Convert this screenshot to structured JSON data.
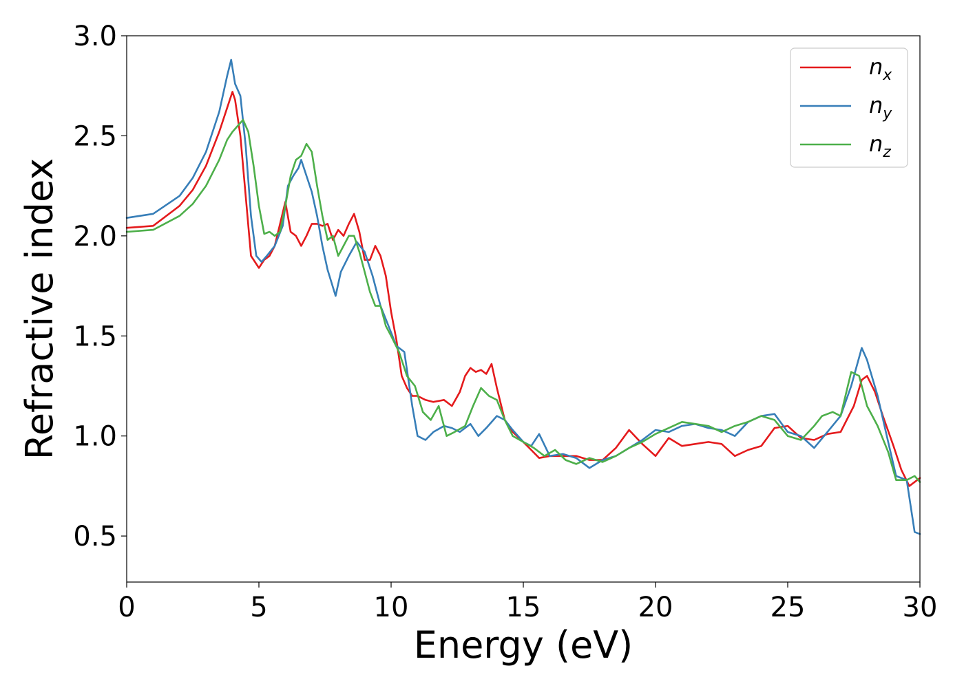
{
  "chart_data": {
    "type": "line",
    "xlabel": "Energy (eV)",
    "ylabel": "Refractive index",
    "xlim": [
      0,
      30
    ],
    "ylim": [
      0.27,
      3.0
    ],
    "xticks": [
      0,
      5,
      10,
      15,
      20,
      25,
      30
    ],
    "yticks": [
      0.5,
      1.0,
      1.5,
      2.0,
      2.5,
      3.0
    ],
    "xtick_labels": [
      "0",
      "5",
      "10",
      "15",
      "20",
      "25",
      "30"
    ],
    "ytick_labels": [
      "0.5",
      "1.0",
      "1.5",
      "2.0",
      "2.5",
      "3.0"
    ],
    "grid": false,
    "legend_position": "top-right",
    "series": [
      {
        "name": "n",
        "subscript": "x",
        "color": "#e41a1c",
        "x": [
          0,
          1,
          2,
          2.5,
          3,
          3.5,
          3.8,
          4.0,
          4.1,
          4.3,
          4.5,
          4.7,
          4.9,
          5.0,
          5.2,
          5.4,
          5.6,
          5.8,
          6.0,
          6.2,
          6.4,
          6.6,
          6.8,
          7.0,
          7.2,
          7.4,
          7.6,
          7.8,
          8.0,
          8.2,
          8.4,
          8.6,
          8.8,
          9.0,
          9.2,
          9.4,
          9.6,
          9.8,
          10.0,
          10.2,
          10.4,
          10.6,
          10.8,
          11.0,
          11.3,
          11.6,
          12.0,
          12.3,
          12.6,
          12.8,
          13.0,
          13.2,
          13.4,
          13.6,
          13.8,
          14.0,
          14.3,
          14.6,
          15.0,
          15.3,
          15.6,
          16.0,
          16.5,
          17.0,
          17.5,
          18.0,
          18.5,
          19.0,
          19.5,
          20.0,
          20.5,
          21.0,
          21.5,
          22.0,
          22.5,
          23.0,
          23.5,
          24.0,
          24.5,
          25.0,
          25.5,
          26.0,
          26.5,
          27.0,
          27.5,
          27.8,
          28.0,
          28.3,
          28.6,
          29.0,
          29.3,
          29.6,
          30.0
        ],
        "values": [
          2.04,
          2.05,
          2.15,
          2.23,
          2.35,
          2.52,
          2.64,
          2.72,
          2.68,
          2.5,
          2.2,
          1.9,
          1.86,
          1.84,
          1.88,
          1.9,
          1.95,
          2.06,
          2.17,
          2.02,
          2.0,
          1.95,
          2.0,
          2.06,
          2.06,
          2.05,
          2.06,
          1.98,
          2.03,
          2.0,
          2.06,
          2.11,
          2.02,
          1.88,
          1.88,
          1.95,
          1.9,
          1.8,
          1.62,
          1.48,
          1.3,
          1.24,
          1.2,
          1.2,
          1.18,
          1.17,
          1.18,
          1.15,
          1.22,
          1.3,
          1.34,
          1.32,
          1.33,
          1.31,
          1.36,
          1.24,
          1.08,
          1.02,
          0.97,
          0.93,
          0.89,
          0.9,
          0.9,
          0.9,
          0.88,
          0.88,
          0.94,
          1.03,
          0.96,
          0.9,
          0.99,
          0.95,
          0.96,
          0.97,
          0.96,
          0.9,
          0.93,
          0.95,
          1.04,
          1.05,
          0.99,
          0.98,
          1.01,
          1.02,
          1.15,
          1.28,
          1.3,
          1.22,
          1.1,
          0.95,
          0.83,
          0.75,
          0.79
        ]
      },
      {
        "name": "n",
        "subscript": "y",
        "color": "#377eb8",
        "x": [
          0,
          1,
          2,
          2.5,
          3,
          3.5,
          3.8,
          3.95,
          4.1,
          4.3,
          4.5,
          4.7,
          4.9,
          5.1,
          5.3,
          5.6,
          5.9,
          6.1,
          6.3,
          6.5,
          6.6,
          6.8,
          7.0,
          7.2,
          7.4,
          7.6,
          7.9,
          8.1,
          8.4,
          8.7,
          9.0,
          9.3,
          9.6,
          9.9,
          10.2,
          10.5,
          10.8,
          11.0,
          11.3,
          11.6,
          12.0,
          12.3,
          12.6,
          13.0,
          13.3,
          13.6,
          14.0,
          14.3,
          14.6,
          15.0,
          15.3,
          15.6,
          16.0,
          16.5,
          17.0,
          17.5,
          18.0,
          18.5,
          19.0,
          19.5,
          20.0,
          20.5,
          21.0,
          21.5,
          22.0,
          22.5,
          23.0,
          23.5,
          24.0,
          24.5,
          25.0,
          25.5,
          26.0,
          26.5,
          27.0,
          27.4,
          27.8,
          28.0,
          28.4,
          28.8,
          29.1,
          29.5,
          29.8,
          30.0
        ],
        "values": [
          2.09,
          2.11,
          2.2,
          2.29,
          2.42,
          2.62,
          2.8,
          2.88,
          2.76,
          2.7,
          2.45,
          2.1,
          1.9,
          1.87,
          1.9,
          1.95,
          2.05,
          2.25,
          2.3,
          2.34,
          2.38,
          2.3,
          2.22,
          2.1,
          1.95,
          1.83,
          1.7,
          1.82,
          1.9,
          1.97,
          1.92,
          1.8,
          1.65,
          1.55,
          1.45,
          1.42,
          1.15,
          1.0,
          0.98,
          1.02,
          1.05,
          1.04,
          1.02,
          1.06,
          1.0,
          1.04,
          1.1,
          1.08,
          1.03,
          0.97,
          0.95,
          1.01,
          0.9,
          0.91,
          0.89,
          0.84,
          0.88,
          0.9,
          0.94,
          0.98,
          1.03,
          1.02,
          1.05,
          1.06,
          1.04,
          1.03,
          1.0,
          1.07,
          1.1,
          1.11,
          1.02,
          1.0,
          0.94,
          1.02,
          1.1,
          1.25,
          1.44,
          1.38,
          1.2,
          0.97,
          0.8,
          0.78,
          0.52,
          0.51
        ]
      },
      {
        "name": "n",
        "subscript": "z",
        "color": "#4daf4a",
        "x": [
          0,
          1,
          2,
          2.5,
          3,
          3.5,
          3.8,
          4.0,
          4.2,
          4.4,
          4.6,
          4.8,
          5.0,
          5.2,
          5.4,
          5.6,
          5.8,
          6.0,
          6.2,
          6.4,
          6.6,
          6.8,
          7.0,
          7.2,
          7.4,
          7.6,
          7.8,
          8.0,
          8.2,
          8.4,
          8.6,
          8.8,
          9.0,
          9.2,
          9.4,
          9.6,
          9.8,
          10.0,
          10.3,
          10.6,
          10.9,
          11.2,
          11.5,
          11.8,
          12.1,
          12.4,
          12.8,
          13.1,
          13.4,
          13.7,
          14.0,
          14.3,
          14.6,
          15.0,
          15.4,
          15.8,
          16.2,
          16.6,
          17.0,
          17.5,
          18.0,
          18.5,
          19.0,
          19.5,
          20.0,
          20.5,
          21.0,
          21.5,
          22.0,
          22.5,
          23.0,
          23.5,
          24.0,
          24.5,
          25.0,
          25.5,
          26.0,
          26.3,
          26.7,
          27.0,
          27.4,
          27.7,
          28.0,
          28.4,
          28.8,
          29.1,
          29.5,
          29.8,
          30.0
        ],
        "values": [
          2.02,
          2.03,
          2.1,
          2.16,
          2.25,
          2.38,
          2.48,
          2.52,
          2.55,
          2.58,
          2.52,
          2.35,
          2.15,
          2.01,
          2.02,
          2.0,
          2.02,
          2.15,
          2.3,
          2.38,
          2.4,
          2.46,
          2.42,
          2.25,
          2.1,
          1.98,
          2.0,
          1.9,
          1.95,
          2.0,
          2.0,
          1.92,
          1.82,
          1.72,
          1.65,
          1.65,
          1.55,
          1.5,
          1.42,
          1.3,
          1.25,
          1.12,
          1.08,
          1.15,
          1.0,
          1.02,
          1.05,
          1.15,
          1.24,
          1.2,
          1.18,
          1.08,
          1.0,
          0.97,
          0.94,
          0.9,
          0.93,
          0.88,
          0.86,
          0.89,
          0.87,
          0.9,
          0.94,
          0.97,
          1.01,
          1.04,
          1.07,
          1.06,
          1.05,
          1.02,
          1.05,
          1.07,
          1.1,
          1.08,
          1.0,
          0.98,
          1.05,
          1.1,
          1.12,
          1.1,
          1.32,
          1.3,
          1.15,
          1.05,
          0.92,
          0.78,
          0.78,
          0.8,
          0.77
        ]
      }
    ]
  }
}
